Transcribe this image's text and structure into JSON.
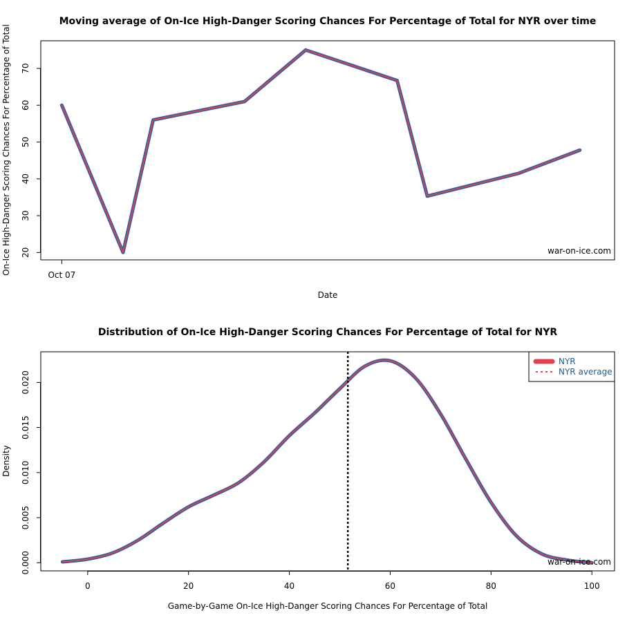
{
  "colors": {
    "line_outer": "#3a5f9a",
    "line_inner": "#e0404f",
    "average_line": "#000000",
    "legend_text": "#1f5e8c"
  },
  "chart_data": [
    {
      "type": "line",
      "title": "Moving average of On-Ice High-Danger Scoring Chances For Percentage of Total for NYR over time",
      "xlabel": "Date",
      "ylabel": "On-Ice High-Danger Scoring Chances For Percentage of Total",
      "x_tick_labels": [
        "Oct 07"
      ],
      "yticks": [
        20,
        30,
        40,
        50,
        60,
        70
      ],
      "ylim": [
        18,
        77.5
      ],
      "xlim": [
        -0.23,
        6.05
      ],
      "grid": false,
      "watermark": "war-on-ice.com",
      "series": [
        {
          "x": [
            0,
            0.67,
            1.0,
            2.0,
            2.67,
            3.67,
            4.0,
            5.0,
            5.67
          ],
          "y": [
            60,
            20,
            56,
            61,
            75,
            66.7,
            35.3,
            41.5,
            47.8
          ]
        }
      ]
    },
    {
      "type": "area",
      "title": "Distribution of On-Ice High-Danger Scoring Chances For Percentage of Total for NYR",
      "xlabel": "Game-by-Game On-Ice High-Danger Scoring Chances For Percentage of Total",
      "ylabel": "Density",
      "xticks": [
        0,
        20,
        40,
        60,
        80,
        100
      ],
      "yticks": [
        0.0,
        0.005,
        0.01,
        0.015,
        0.02
      ],
      "ytick_labels": [
        "0.000",
        "0.005",
        "0.010",
        "0.015",
        "0.020"
      ],
      "xlim": [
        -9.3,
        104.5
      ],
      "ylim": [
        -0.0009,
        0.0234
      ],
      "grid": false,
      "legend_position": "top-right",
      "legend": [
        {
          "label": "NYR",
          "style": "solid"
        },
        {
          "label": "NYR average",
          "style": "dashed"
        }
      ],
      "watermark": "war-on-ice.com",
      "average_x": 51.6,
      "series": [
        {
          "name": "NYR",
          "x": [
            -5,
            0,
            5,
            10,
            15,
            20,
            25,
            30,
            35,
            40,
            45,
            50,
            55,
            60,
            65,
            70,
            75,
            80,
            85,
            90,
            95,
            100
          ],
          "y": [
            0.0001,
            0.0004,
            0.0011,
            0.0025,
            0.0044,
            0.0062,
            0.0075,
            0.0089,
            0.0112,
            0.0141,
            0.0166,
            0.0193,
            0.0218,
            0.0224,
            0.0205,
            0.0165,
            0.0115,
            0.0067,
            0.003,
            0.001,
            0.0003,
            0.0
          ]
        }
      ]
    }
  ]
}
